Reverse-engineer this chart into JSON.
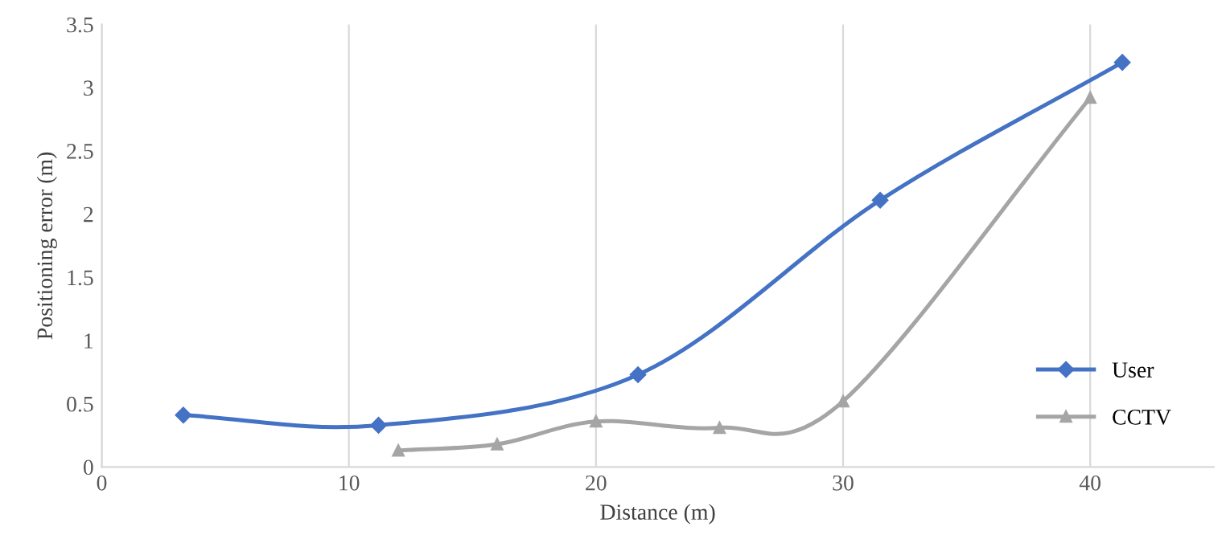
{
  "chart_data": {
    "type": "line",
    "xlabel": "Distance (m)",
    "ylabel": "Positioning error (m)",
    "xlim": [
      0,
      45
    ],
    "xticks": [
      0,
      10,
      20,
      30,
      40
    ],
    "ylim": [
      0,
      3.5
    ],
    "yticks": [
      0,
      0.5,
      1,
      1.5,
      2,
      2.5,
      3,
      3.5
    ],
    "grid": "x",
    "legend": "bottom right",
    "line_style": "solid",
    "series": [
      {
        "name": "User",
        "color": "#4472c4",
        "marker": "diamond",
        "x": [
          3.3,
          11.2,
          21.7,
          31.5,
          41.3
        ],
        "values": [
          0.41,
          0.33,
          0.73,
          2.11,
          3.2
        ]
      },
      {
        "name": "CCTV",
        "color": "#a5a5a5",
        "marker": "triangle",
        "x": [
          12,
          16,
          20,
          25,
          30,
          40
        ],
        "values": [
          0.13,
          0.18,
          0.36,
          0.31,
          0.52,
          2.92
        ]
      }
    ]
  }
}
